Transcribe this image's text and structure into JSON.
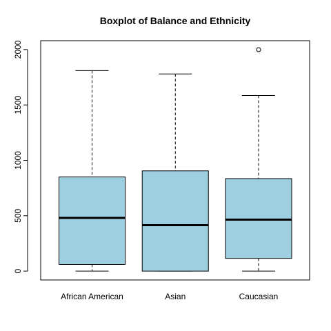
{
  "chart_data": {
    "type": "boxplot",
    "title": "Boxplot of Balance and Ethnicity",
    "xlabel": "",
    "ylabel": "",
    "categories": [
      "African American",
      "Asian",
      "Caucasian"
    ],
    "boxes": [
      {
        "category": "African American",
        "whisker_low": 0,
        "q1": 60,
        "median": 480,
        "q3": 850,
        "whisker_high": 1810,
        "outliers": []
      },
      {
        "category": "Asian",
        "whisker_low": 0,
        "q1": 0,
        "median": 415,
        "q3": 905,
        "whisker_high": 1780,
        "outliers": []
      },
      {
        "category": "Caucasian",
        "whisker_low": 0,
        "q1": 115,
        "median": 465,
        "q3": 835,
        "whisker_high": 1585,
        "outliers": [
          1999
        ]
      }
    ],
    "y_ticks": [
      0,
      500,
      1000,
      1500,
      2000
    ],
    "y_tick_labels": [
      "0",
      "500",
      "1000",
      "1500",
      "2000"
    ],
    "ylim": [
      -80,
      2080
    ],
    "box_color": "#9ecfe0",
    "line_color": "#000000",
    "grid": false,
    "legend": "none"
  }
}
